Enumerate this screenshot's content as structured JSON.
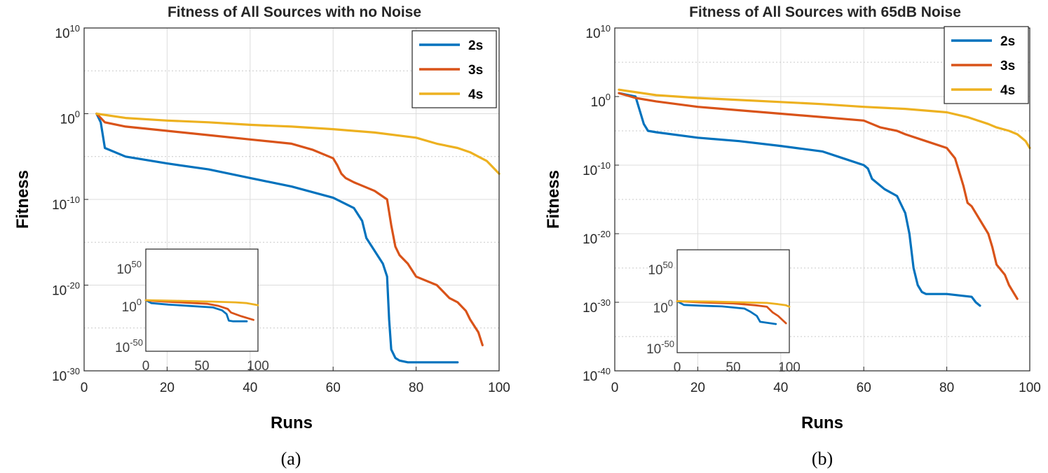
{
  "chart_data": [
    {
      "panel": "(a)",
      "type": "line",
      "title": "Fitness of All Sources with no Noise",
      "xlabel": "Runs",
      "ylabel": "Fitness",
      "yscale": "log",
      "xlim": [
        0,
        100
      ],
      "ylim_exp": [
        -30,
        10
      ],
      "xticks": [
        0,
        20,
        40,
        60,
        80,
        100
      ],
      "xtick_labels": [
        "0",
        "20",
        "40",
        "60",
        "80",
        "100"
      ],
      "yticks_exp": [
        -30,
        -20,
        -10,
        0,
        10
      ],
      "ytick_labels": [
        {
          "base": "10",
          "exp": "-30"
        },
        {
          "base": "10",
          "exp": "-20"
        },
        {
          "base": "10",
          "exp": "-10"
        },
        {
          "base": "10",
          "exp": "0"
        },
        {
          "base": "10",
          "exp": "10"
        }
      ],
      "grid": true,
      "legend_position": "top-right",
      "series": [
        {
          "name": "2s",
          "color": "#0072BD",
          "x": [
            3,
            4,
            5,
            10,
            20,
            30,
            40,
            50,
            60,
            65,
            67,
            68,
            70,
            72,
            73,
            73.5,
            74,
            75,
            76,
            78,
            80,
            90
          ],
          "log10": [
            0,
            -1,
            -4,
            -5,
            -5.8,
            -6.5,
            -7.5,
            -8.5,
            -9.8,
            -11,
            -12.5,
            -14.5,
            -16,
            -17.5,
            -19,
            -24,
            -27.5,
            -28.5,
            -28.8,
            -29,
            -29,
            -29
          ]
        },
        {
          "name": "3s",
          "color": "#D95319",
          "x": [
            3,
            4,
            5,
            10,
            20,
            30,
            40,
            50,
            55,
            60,
            61,
            62,
            63,
            65,
            70,
            73,
            74,
            75,
            76,
            78,
            80,
            85,
            88,
            90,
            92,
            93,
            95,
            96
          ],
          "log10": [
            0,
            -0.5,
            -1,
            -1.5,
            -2,
            -2.5,
            -3,
            -3.5,
            -4.2,
            -5.2,
            -6,
            -7,
            -7.5,
            -8,
            -9,
            -10,
            -13,
            -15.5,
            -16.5,
            -17.5,
            -19,
            -20,
            -21.5,
            -22,
            -23,
            -24,
            -25.5,
            -27
          ]
        },
        {
          "name": "4s",
          "color": "#EDB120",
          "x": [
            3,
            10,
            20,
            30,
            40,
            50,
            60,
            70,
            80,
            85,
            90,
            93,
            95,
            97,
            98,
            99,
            100
          ],
          "log10": [
            0,
            -0.5,
            -0.8,
            -1,
            -1.3,
            -1.5,
            -1.8,
            -2.2,
            -2.8,
            -3.5,
            -4,
            -4.5,
            -5,
            -5.5,
            -6,
            -6.5,
            -7
          ]
        }
      ],
      "inset": {
        "xlim": [
          0,
          100
        ],
        "ylim_exp": [
          -70,
          70
        ],
        "xtick_labels": [
          "0",
          "50",
          "100"
        ],
        "ytick_labels": [
          {
            "base": "10",
            "exp": "50"
          },
          {
            "base": "10",
            "exp": "0"
          },
          {
            "base": "10",
            "exp": "-50"
          }
        ],
        "series": [
          {
            "name": "2s",
            "color": "#0072BD",
            "x": [
              0,
              5,
              20,
              40,
              60,
              68,
              72,
              74,
              78,
              90
            ],
            "log10": [
              0,
              -4,
              -6,
              -8,
              -10,
              -14,
              -19,
              -28,
              -29,
              -29
            ]
          },
          {
            "name": "3s",
            "color": "#D95319",
            "x": [
              0,
              5,
              30,
              55,
              65,
              73,
              76,
              85,
              96
            ],
            "log10": [
              0,
              -1,
              -3,
              -5,
              -8,
              -12,
              -17,
              -22,
              -27
            ]
          },
          {
            "name": "4s",
            "color": "#EDB120",
            "x": [
              0,
              30,
              60,
              80,
              90,
              97,
              100
            ],
            "log10": [
              0,
              -1,
              -2,
              -3,
              -4,
              -6,
              -7
            ]
          }
        ]
      }
    },
    {
      "panel": "(b)",
      "type": "line",
      "title": "Fitness of All Sources with 65dB Noise",
      "xlabel": "Runs",
      "ylabel": "Fitness",
      "yscale": "log",
      "xlim": [
        0,
        100
      ],
      "ylim_exp": [
        -40,
        10
      ],
      "xticks": [
        0,
        20,
        40,
        60,
        80,
        100
      ],
      "xtick_labels": [
        "0",
        "20",
        "40",
        "60",
        "80",
        "100"
      ],
      "yticks_exp": [
        -40,
        -30,
        -20,
        -10,
        0,
        10
      ],
      "ytick_labels": [
        {
          "base": "10",
          "exp": "-40"
        },
        {
          "base": "10",
          "exp": "-30"
        },
        {
          "base": "10",
          "exp": "-20"
        },
        {
          "base": "10",
          "exp": "-10"
        },
        {
          "base": "10",
          "exp": "0"
        },
        {
          "base": "10",
          "exp": "10"
        }
      ],
      "grid": true,
      "legend_position": "top-right",
      "series": [
        {
          "name": "2s",
          "color": "#0072BD",
          "x": [
            1,
            5,
            6,
            7,
            8,
            10,
            20,
            30,
            40,
            50,
            55,
            60,
            61,
            62,
            65,
            68,
            70,
            71,
            72,
            73,
            74,
            75,
            80,
            86,
            87,
            88
          ],
          "log10": [
            0.5,
            0,
            -2,
            -4,
            -5,
            -5.2,
            -6,
            -6.5,
            -7.2,
            -8,
            -9,
            -10,
            -10.5,
            -12,
            -13.5,
            -14.5,
            -17,
            -20,
            -25,
            -27.5,
            -28.5,
            -28.8,
            -28.8,
            -29.2,
            -30,
            -30.5
          ]
        },
        {
          "name": "3s",
          "color": "#D95319",
          "x": [
            1,
            5,
            10,
            20,
            30,
            40,
            50,
            60,
            62,
            64,
            68,
            70,
            75,
            80,
            82,
            83,
            84,
            85,
            86,
            87,
            90,
            91,
            92,
            94,
            95,
            96,
            97
          ],
          "log10": [
            0.5,
            -0.2,
            -0.7,
            -1.5,
            -2,
            -2.5,
            -3,
            -3.5,
            -4,
            -4.5,
            -5,
            -5.5,
            -6.5,
            -7.5,
            -9,
            -11,
            -13,
            -15.5,
            -16,
            -17,
            -20,
            -22,
            -24.5,
            -26,
            -27.5,
            -28.5,
            -29.5
          ]
        },
        {
          "name": "4s",
          "color": "#EDB120",
          "x": [
            1,
            10,
            20,
            30,
            40,
            50,
            60,
            70,
            80,
            85,
            90,
            92,
            95,
            97,
            98,
            99,
            100
          ],
          "log10": [
            1,
            0.2,
            -0.2,
            -0.5,
            -0.8,
            -1.1,
            -1.5,
            -1.8,
            -2.3,
            -3,
            -4,
            -4.5,
            -5,
            -5.5,
            -6,
            -6.5,
            -7.5
          ]
        }
      ],
      "inset": {
        "xlim": [
          0,
          100
        ],
        "ylim_exp": [
          -70,
          70
        ],
        "xtick_labels": [
          "0",
          "50",
          "100"
        ],
        "ytick_labels": [
          {
            "base": "10",
            "exp": "50"
          },
          {
            "base": "10",
            "exp": "0"
          },
          {
            "base": "10",
            "exp": "-50"
          }
        ],
        "series": [
          {
            "name": "2s",
            "color": "#0072BD",
            "x": [
              0,
              6,
              20,
              40,
              60,
              65,
              71,
              74,
              88
            ],
            "log10": [
              0,
              -5,
              -6,
              -7,
              -10,
              -14,
              -20,
              -28,
              -31
            ]
          },
          {
            "name": "3s",
            "color": "#D95319",
            "x": [
              0,
              20,
              50,
              70,
              80,
              85,
              90,
              97
            ],
            "log10": [
              0,
              -1.5,
              -3,
              -5.5,
              -7.5,
              -15,
              -20,
              -30
            ]
          },
          {
            "name": "4s",
            "color": "#EDB120",
            "x": [
              0,
              30,
              60,
              80,
              90,
              97,
              100
            ],
            "log10": [
              0,
              -0.5,
              -1.5,
              -2.3,
              -4,
              -5.5,
              -7.5
            ]
          }
        ]
      }
    }
  ]
}
